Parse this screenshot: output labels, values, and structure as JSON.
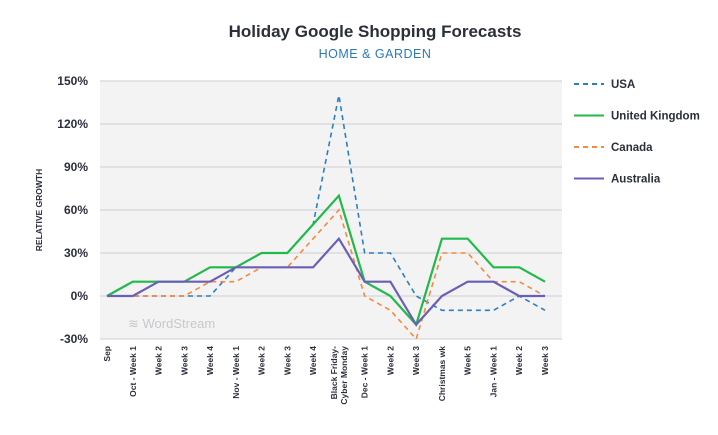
{
  "chart_data": {
    "type": "line",
    "title": "Holiday Google Shopping Forecasts",
    "subtitle": "HOME & GARDEN",
    "ylabel": "RELATIVE GROWTH",
    "xlabel": "",
    "ylim": [
      -30,
      150
    ],
    "yticks": [
      "-30%",
      "0%",
      "30%",
      "60%",
      "90%",
      "120%",
      "150%"
    ],
    "ytick_values": [
      -30,
      0,
      30,
      60,
      90,
      120,
      150
    ],
    "grid": true,
    "legend": "right",
    "watermark": "WordStream",
    "categories": [
      "Sep",
      "Oct - Week 1",
      "Week 2",
      "Week 3",
      "Week 4",
      "Nov - Week 1",
      "Week 2",
      "Week 3",
      "Week 4",
      "Black Friday-\nCyber Monday",
      "Dec - Week 1",
      "Week 2",
      "Week 3",
      "Christmas wk",
      "Week 5",
      "Jan - Week 1",
      "Week 2",
      "Week 3"
    ],
    "series": [
      {
        "name": "USA",
        "color": "#2a7fc4",
        "dashed": true,
        "values": [
          0,
          0,
          0,
          0,
          0,
          20,
          30,
          30,
          50,
          140,
          30,
          30,
          0,
          -10,
          -10,
          -10,
          0,
          -10
        ]
      },
      {
        "name": "United Kingdom",
        "color": "#22b94a",
        "dashed": false,
        "values": [
          0,
          10,
          10,
          10,
          20,
          20,
          30,
          30,
          50,
          70,
          10,
          0,
          -20,
          40,
          40,
          20,
          20,
          10
        ]
      },
      {
        "name": "Canada",
        "color": "#f58a3c",
        "dashed": true,
        "values": [
          0,
          0,
          0,
          0,
          10,
          10,
          20,
          20,
          40,
          60,
          0,
          -10,
          -30,
          30,
          30,
          10,
          10,
          0
        ]
      },
      {
        "name": "Australia",
        "color": "#6b5fb5",
        "dashed": false,
        "values": [
          0,
          0,
          10,
          10,
          10,
          20,
          20,
          20,
          20,
          40,
          10,
          10,
          -20,
          0,
          10,
          10,
          0,
          0
        ]
      }
    ]
  }
}
